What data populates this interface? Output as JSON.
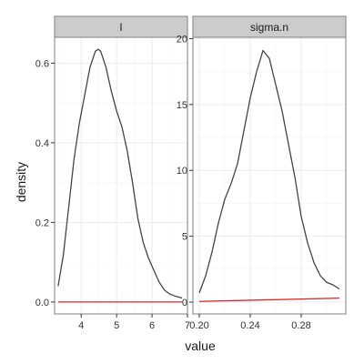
{
  "chart_data": {
    "type": "line",
    "xlabel": "value",
    "ylabel": "density",
    "colors": {
      "panel_background": "#ffffff",
      "grid_major": "#ebebeb",
      "grid_minor": "#f5f5f5",
      "strip_fill": "#cccccc",
      "border": "#7f7f7f",
      "density_line": "#444444",
      "prior_line": "#d62728"
    },
    "panels": [
      {
        "strip_label": "l",
        "xlim": [
          3.25,
          7.0
        ],
        "ylim": [
          -0.03,
          0.665
        ],
        "x_major_ticks": [
          4,
          5,
          6,
          7
        ],
        "x_tick_labels": [
          "4",
          "5",
          "6",
          "7"
        ],
        "x_minor_ticks": [
          3.5,
          4.5,
          5.5,
          6.5
        ],
        "y_major_ticks": [
          0.0,
          0.2,
          0.4,
          0.6
        ],
        "y_tick_labels": [
          "0.0",
          "0.2",
          "0.4",
          "0.6"
        ],
        "y_minor_ticks": [
          0.1,
          0.3,
          0.5
        ],
        "series": [
          {
            "x": [
              3.35,
              3.5,
              3.65,
              3.8,
              3.95,
              4.1,
              4.25,
              4.4,
              4.48,
              4.55,
              4.7,
              4.85,
              5.0,
              5.15,
              5.3,
              5.45,
              5.6,
              5.75,
              5.9,
              6.05,
              6.2,
              6.35,
              6.5,
              6.65,
              6.85
            ],
            "y": [
              0.04,
              0.12,
              0.24,
              0.36,
              0.45,
              0.52,
              0.59,
              0.63,
              0.635,
              0.63,
              0.59,
              0.53,
              0.48,
              0.44,
              0.38,
              0.3,
              0.21,
              0.15,
              0.11,
              0.08,
              0.05,
              0.03,
              0.02,
              0.015,
              0.01
            ]
          },
          {
            "x": [
              3.35,
              6.85
            ],
            "y": [
              0.0,
              0.0
            ]
          }
        ]
      },
      {
        "strip_label": "sigma.n",
        "xlim": [
          0.195,
          0.315
        ],
        "ylim": [
          -0.9,
          20.1
        ],
        "x_major_ticks": [
          0.2,
          0.24,
          0.28
        ],
        "x_tick_labels": [
          "0.20",
          "0.24",
          "0.28"
        ],
        "x_minor_ticks": [
          0.22,
          0.26,
          0.3
        ],
        "y_major_ticks": [
          0,
          5,
          10,
          15,
          20
        ],
        "y_tick_labels": [
          "0",
          "5",
          "10",
          "15",
          "20"
        ],
        "y_minor_ticks": [
          2.5,
          7.5,
          12.5,
          17.5
        ],
        "series": [
          {
            "x": [
              0.2,
              0.205,
              0.21,
              0.215,
              0.22,
              0.225,
              0.23,
              0.235,
              0.24,
              0.245,
              0.25,
              0.255,
              0.26,
              0.265,
              0.27,
              0.275,
              0.28,
              0.285,
              0.29,
              0.295,
              0.3,
              0.305,
              0.31
            ],
            "y": [
              0.7,
              2.0,
              3.8,
              6.0,
              7.8,
              9.0,
              10.5,
              13.0,
              15.5,
              17.5,
              19.1,
              18.5,
              16.5,
              14.5,
              12.0,
              9.5,
              6.5,
              4.5,
              3.0,
              2.0,
              1.5,
              1.3,
              1.0
            ]
          },
          {
            "x": [
              0.2,
              0.31
            ],
            "y": [
              0.05,
              0.3
            ]
          }
        ]
      }
    ]
  }
}
